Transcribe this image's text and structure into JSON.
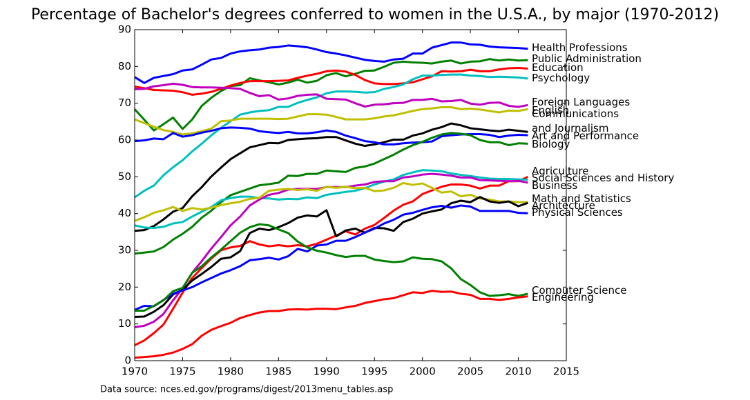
{
  "chart_data": {
    "type": "line",
    "title": "Percentage of Bachelor's degrees conferred to women in the U.S.A., by major (1970-2012)",
    "source": "Data source: nces.ed.gov/programs/digest/2013menu_tables.asp",
    "x": [
      1970,
      1971,
      1972,
      1973,
      1974,
      1975,
      1976,
      1977,
      1978,
      1979,
      1980,
      1981,
      1982,
      1983,
      1984,
      1985,
      1986,
      1987,
      1988,
      1989,
      1990,
      1991,
      1992,
      1993,
      1994,
      1995,
      1996,
      1997,
      1998,
      1999,
      2000,
      2001,
      2002,
      2003,
      2004,
      2005,
      2006,
      2007,
      2008,
      2009,
      2010,
      2011
    ],
    "xlim": [
      1970,
      2015
    ],
    "xticks": [
      1970,
      1975,
      1980,
      1985,
      1990,
      1995,
      2000,
      2005,
      2010,
      2015
    ],
    "ylim": [
      0,
      90
    ],
    "yticks": [
      0,
      10,
      20,
      30,
      40,
      50,
      60,
      70,
      80,
      90
    ],
    "grid": false,
    "series": [
      {
        "name": "Health Professions",
        "color": "#0000ff",
        "values": [
          77.1,
          75.5,
          76.9,
          77.4,
          77.9,
          78.9,
          79.2,
          80.5,
          81.9,
          82.3,
          83.5,
          84.1,
          84.4,
          84.6,
          85.1,
          85.3,
          85.7,
          85.5,
          85.2,
          84.6,
          83.9,
          83.5,
          83.0,
          82.4,
          81.8,
          81.5,
          81.3,
          81.9,
          82.1,
          83.5,
          83.5,
          85.1,
          85.8,
          86.5,
          86.5,
          86.0,
          85.9,
          85.4,
          85.2,
          85.1,
          85.0,
          84.8
        ]
      },
      {
        "name": "Public Administration",
        "color": "#008000",
        "values": [
          68.4,
          65.5,
          62.6,
          64.3,
          66.1,
          63.0,
          65.6,
          69.3,
          71.5,
          73.3,
          74.7,
          74.9,
          76.8,
          76.2,
          75.7,
          75.1,
          75.6,
          76.4,
          75.6,
          76.1,
          77.6,
          78.2,
          77.3,
          78.0,
          78.8,
          78.9,
          79.9,
          81.0,
          81.3,
          81.1,
          81.0,
          80.8,
          81.3,
          81.6,
          80.8,
          81.3,
          81.4,
          82.0,
          81.6,
          81.9,
          81.6,
          81.7
        ]
      },
      {
        "name": "Education",
        "color": "#ff0000",
        "values": [
          74.5,
          74.1,
          73.6,
          73.5,
          73.4,
          73.0,
          72.3,
          72.6,
          73.1,
          73.9,
          74.8,
          75.5,
          76.0,
          76.0,
          76.0,
          76.1,
          76.2,
          76.9,
          77.5,
          78.0,
          78.7,
          78.9,
          78.6,
          77.7,
          76.3,
          75.4,
          75.2,
          75.2,
          75.4,
          75.7,
          76.5,
          77.3,
          78.7,
          78.6,
          78.7,
          79.1,
          78.7,
          78.7,
          79.2,
          79.5,
          79.6,
          79.4
        ]
      },
      {
        "name": "Psychology",
        "color": "#00bfbf",
        "values": [
          44.4,
          46.2,
          47.6,
          50.4,
          52.6,
          54.5,
          56.9,
          59.0,
          61.3,
          63.3,
          65.1,
          66.9,
          67.5,
          67.9,
          68.1,
          69.0,
          69.0,
          70.1,
          70.9,
          71.6,
          72.7,
          73.2,
          73.2,
          73.1,
          72.9,
          73.0,
          73.9,
          74.4,
          75.1,
          76.5,
          77.5,
          77.5,
          77.7,
          77.8,
          77.8,
          77.5,
          77.4,
          77.1,
          77.2,
          77.1,
          77.0,
          76.7
        ]
      },
      {
        "name": "Foreign Languages",
        "color": "#bf00bf",
        "values": [
          73.8,
          73.9,
          74.6,
          74.9,
          75.3,
          75.0,
          74.4,
          74.3,
          74.3,
          74.2,
          74.1,
          73.9,
          72.8,
          71.9,
          72.2,
          71.0,
          71.3,
          72.0,
          72.3,
          72.4,
          71.2,
          71.1,
          71.0,
          70.0,
          69.1,
          69.6,
          69.7,
          70.0,
          70.1,
          70.9,
          70.9,
          71.2,
          70.5,
          70.6,
          70.9,
          69.9,
          69.6,
          70.1,
          70.2,
          69.3,
          69.0,
          69.5
        ]
      },
      {
        "name": "English",
        "color": "#bfbf00",
        "values": [
          65.6,
          64.6,
          63.6,
          62.7,
          62.2,
          61.5,
          61.8,
          62.4,
          63.1,
          65.1,
          65.3,
          65.8,
          65.8,
          65.8,
          65.8,
          65.7,
          65.8,
          66.4,
          67.0,
          67.0,
          66.9,
          66.3,
          65.6,
          65.6,
          65.6,
          65.9,
          66.4,
          66.7,
          67.3,
          67.9,
          68.4,
          68.6,
          68.9,
          68.9,
          68.4,
          68.5,
          68.3,
          67.9,
          67.5,
          68.0,
          67.9,
          68.4
        ]
      },
      {
        "name": "Communications\nand Journalism",
        "color": "#000000",
        "values": [
          35.3,
          35.5,
          36.6,
          38.4,
          40.5,
          41.5,
          44.7,
          47.2,
          50.1,
          52.5,
          54.8,
          56.4,
          58.0,
          58.6,
          59.2,
          59.1,
          60.0,
          60.2,
          60.4,
          60.5,
          60.8,
          60.8,
          59.9,
          59.0,
          58.4,
          58.8,
          59.4,
          60.1,
          60.1,
          61.2,
          61.8,
          62.8,
          63.5,
          64.5,
          64.0,
          63.2,
          62.9,
          62.6,
          62.4,
          62.8,
          62.5,
          62.2
        ]
      },
      {
        "name": "Art and Performance",
        "color": "#0000ff",
        "values": [
          59.7,
          59.9,
          60.4,
          60.2,
          61.9,
          60.9,
          61.3,
          62.0,
          62.5,
          63.2,
          63.4,
          63.3,
          63.1,
          62.4,
          62.1,
          61.9,
          62.2,
          61.8,
          61.8,
          62.1,
          62.6,
          62.2,
          61.2,
          60.5,
          59.7,
          59.4,
          58.8,
          58.8,
          59.1,
          59.3,
          59.4,
          59.6,
          61.0,
          61.3,
          61.5,
          61.6,
          61.6,
          61.4,
          60.8,
          61.2,
          61.4,
          61.3
        ]
      },
      {
        "name": "Biology",
        "color": "#008000",
        "values": [
          29.1,
          29.4,
          29.7,
          30.9,
          32.9,
          34.5,
          36.4,
          38.9,
          40.8,
          43.1,
          45.0,
          45.9,
          46.8,
          47.7,
          48.0,
          48.4,
          50.3,
          50.2,
          50.8,
          50.8,
          51.7,
          51.5,
          51.3,
          52.4,
          52.8,
          53.6,
          54.8,
          56.0,
          57.4,
          58.6,
          59.5,
          60.6,
          61.5,
          61.9,
          61.7,
          61.3,
          60.0,
          59.4,
          59.4,
          58.6,
          59.1,
          59.0
        ]
      },
      {
        "name": "Agriculture",
        "color": "#ff0000",
        "values": [
          4.2,
          5.5,
          7.5,
          9.8,
          14.1,
          18.5,
          22.5,
          25.2,
          27.8,
          30.0,
          30.8,
          31.2,
          32.5,
          31.6,
          31.1,
          31.4,
          31.1,
          31.4,
          31.1,
          31.8,
          32.9,
          34.0,
          35.2,
          34.3,
          35.9,
          36.9,
          38.8,
          40.8,
          42.4,
          43.3,
          45.3,
          46.3,
          47.3,
          47.9,
          47.9,
          47.6,
          46.8,
          47.6,
          47.6,
          48.8,
          48.8,
          50.0
        ]
      },
      {
        "name": "Social Sciences and History",
        "color": "#00bfbf",
        "values": [
          36.8,
          36.2,
          36.1,
          36.4,
          37.3,
          37.7,
          39.2,
          40.5,
          41.8,
          43.6,
          44.2,
          44.6,
          44.6,
          44.2,
          44.1,
          43.8,
          44.0,
          43.9,
          44.4,
          44.2,
          45.1,
          45.5,
          45.9,
          46.2,
          46.9,
          47.9,
          48.7,
          49.3,
          50.5,
          51.2,
          51.8,
          51.7,
          51.5,
          50.9,
          50.5,
          50.2,
          49.8,
          49.5,
          49.4,
          49.4,
          49.3,
          49.2
        ]
      },
      {
        "name": "Business",
        "color": "#bf00bf",
        "values": [
          9.1,
          9.5,
          10.6,
          12.7,
          16.4,
          19.7,
          23.9,
          27.1,
          30.5,
          33.6,
          36.8,
          39.2,
          42.2,
          43.8,
          45.1,
          45.6,
          46.5,
          46.7,
          46.7,
          46.7,
          47.2,
          47.2,
          47.2,
          47.6,
          47.9,
          48.6,
          48.8,
          48.8,
          49.8,
          50.1,
          50.6,
          50.8,
          50.6,
          50.3,
          49.8,
          49.8,
          49.1,
          49.0,
          48.9,
          48.8,
          48.9,
          48.4
        ]
      },
      {
        "name": "Math and Statistics",
        "color": "#bfbf00",
        "values": [
          38.0,
          39.0,
          40.2,
          40.9,
          41.8,
          40.7,
          41.5,
          41.1,
          41.6,
          42.3,
          42.8,
          43.2,
          44.0,
          44.3,
          46.2,
          46.5,
          46.7,
          46.4,
          46.6,
          46.2,
          47.3,
          47.0,
          47.3,
          46.9,
          47.0,
          46.1,
          46.3,
          47.0,
          48.3,
          47.8,
          48.2,
          47.0,
          45.7,
          46.0,
          44.7,
          45.1,
          44.1,
          43.8,
          43.3,
          43.3,
          43.1,
          43.1
        ]
      },
      {
        "name": "Architecture",
        "color": "#000000",
        "values": [
          11.9,
          12.0,
          13.3,
          15.1,
          18.0,
          19.3,
          21.8,
          23.6,
          25.5,
          27.7,
          28.1,
          29.8,
          34.7,
          35.9,
          35.5,
          36.3,
          37.4,
          38.9,
          39.5,
          39.2,
          40.9,
          33.8,
          35.4,
          35.9,
          34.8,
          36.1,
          36.0,
          35.3,
          37.7,
          38.6,
          40.0,
          40.6,
          41.1,
          42.8,
          43.5,
          43.1,
          44.5,
          43.3,
          42.9,
          43.3,
          42.0,
          42.9
        ]
      },
      {
        "name": "Physical Sciences",
        "color": "#0000ff",
        "values": [
          13.8,
          14.9,
          14.8,
          16.5,
          18.2,
          19.1,
          20.0,
          21.3,
          22.5,
          23.7,
          24.6,
          25.7,
          27.3,
          27.6,
          28.0,
          27.5,
          28.4,
          30.4,
          29.7,
          31.3,
          31.6,
          32.6,
          32.6,
          33.6,
          34.8,
          35.9,
          37.3,
          38.3,
          39.7,
          40.2,
          41.0,
          41.7,
          42.1,
          41.6,
          42.2,
          41.9,
          40.7,
          40.7,
          40.7,
          40.7,
          40.2,
          40.1
        ]
      },
      {
        "name": "Computer Science",
        "color": "#008000",
        "values": [
          13.6,
          13.6,
          14.9,
          16.4,
          18.9,
          19.8,
          23.9,
          25.7,
          28.1,
          30.2,
          32.5,
          34.8,
          36.3,
          37.1,
          36.8,
          35.7,
          34.7,
          32.4,
          30.8,
          29.9,
          29.4,
          28.7,
          28.2,
          28.5,
          28.5,
          27.5,
          27.1,
          26.8,
          27.0,
          28.1,
          27.7,
          27.6,
          27.0,
          25.1,
          22.2,
          20.6,
          18.6,
          17.6,
          17.8,
          18.1,
          17.6,
          18.2
        ]
      },
      {
        "name": "Engineering",
        "color": "#ff0000",
        "values": [
          0.8,
          1.0,
          1.2,
          1.6,
          2.2,
          3.2,
          4.5,
          6.8,
          8.4,
          9.4,
          10.3,
          11.6,
          12.4,
          13.1,
          13.5,
          13.5,
          13.9,
          14.0,
          13.9,
          14.1,
          14.1,
          14.0,
          14.5,
          14.9,
          15.7,
          16.2,
          16.7,
          17.0,
          17.8,
          18.6,
          18.4,
          19.0,
          18.7,
          18.8,
          18.2,
          17.9,
          16.8,
          16.8,
          16.5,
          16.8,
          17.2,
          17.5
        ]
      }
    ]
  }
}
